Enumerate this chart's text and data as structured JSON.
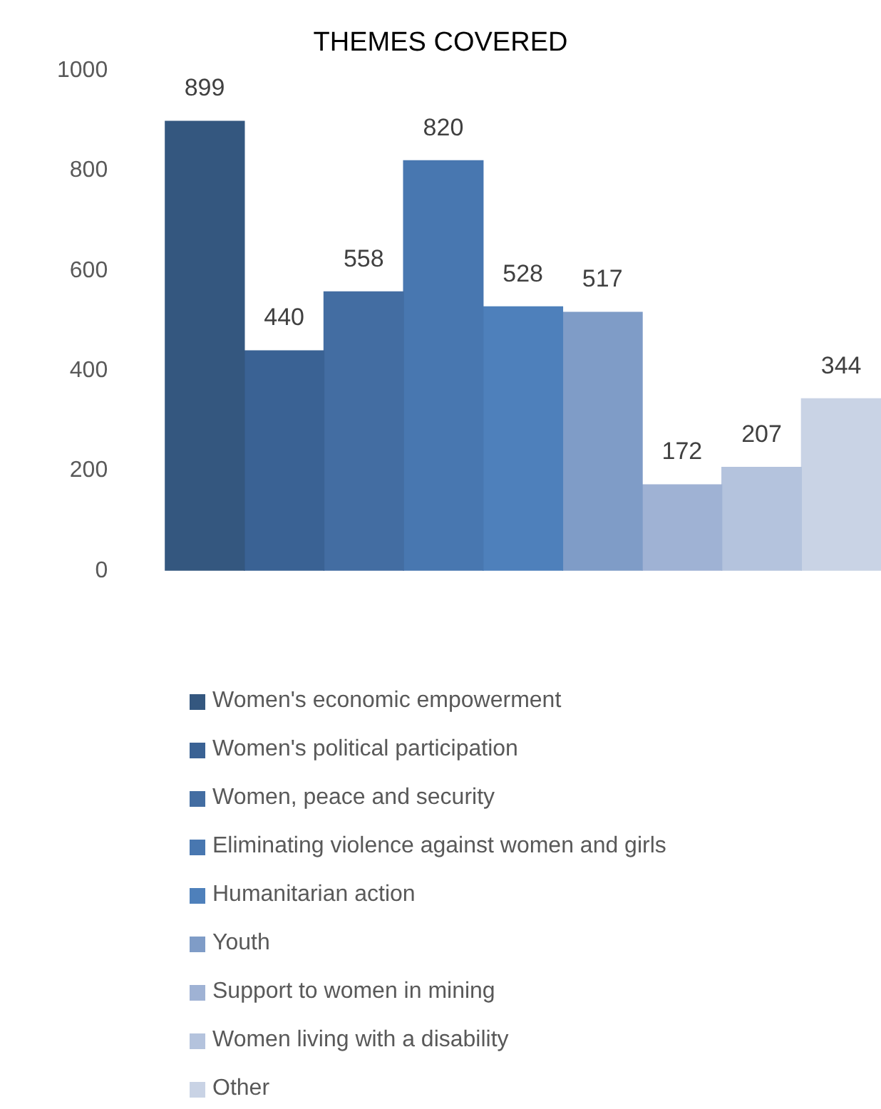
{
  "chart_data": {
    "type": "bar",
    "title": "THEMES COVERED",
    "categories": [
      null
    ],
    "series": [
      {
        "name": "Women's economic empowerment",
        "color": "#34577f",
        "values": [
          899
        ]
      },
      {
        "name": "Women's political participation",
        "color": "#3a6294",
        "values": [
          440
        ]
      },
      {
        "name": "Women, peace and security",
        "color": "#436da2",
        "values": [
          558
        ]
      },
      {
        "name": "Eliminating violence against women and girls",
        "color": "#4877b0",
        "values": [
          820
        ]
      },
      {
        "name": "Humanitarian action",
        "color": "#4e80bb",
        "values": [
          528
        ]
      },
      {
        "name": "Youth",
        "color": "#7f9cc7",
        "values": [
          517
        ]
      },
      {
        "name": "Support to women in mining",
        "color": "#9fb2d4",
        "values": [
          172
        ]
      },
      {
        "name": "Women living with a disability",
        "color": "#b4c3dd",
        "values": [
          207
        ]
      },
      {
        "name": "Other",
        "color": "#c9d3e5",
        "values": [
          344
        ]
      }
    ],
    "ylim": [
      0,
      1000
    ],
    "yticks": [
      0,
      200,
      400,
      600,
      800,
      1000
    ],
    "grid": false,
    "legend": "bottom",
    "data_labels": true
  }
}
